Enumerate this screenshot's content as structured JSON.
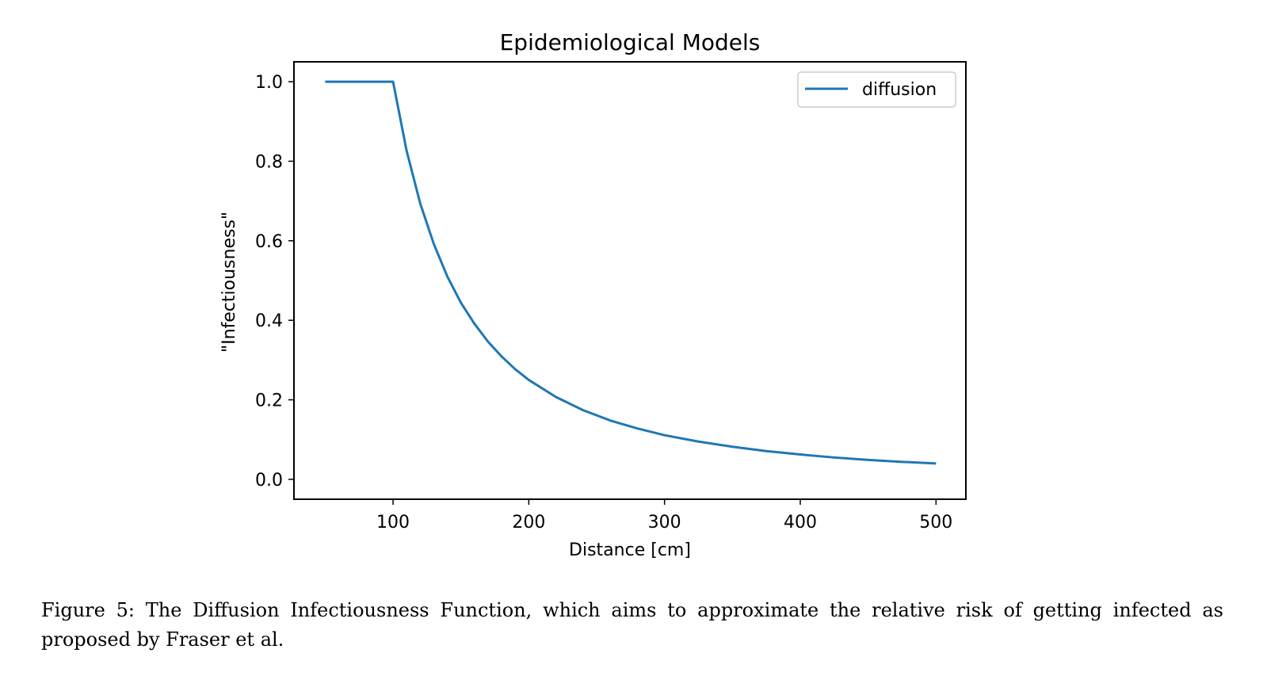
{
  "chart_data": {
    "type": "line",
    "title": "Epidemiological Models",
    "xlabel": "Distance [cm]",
    "ylabel": "\"Infectiousness\"",
    "xlim": [
      27,
      522
    ],
    "ylim": [
      -0.05,
      1.05
    ],
    "xticks": [
      100,
      200,
      300,
      400,
      500
    ],
    "yticks": [
      0.0,
      0.2,
      0.4,
      0.6,
      0.8,
      1.0
    ],
    "legend": "top-right",
    "grid": false,
    "series": [
      {
        "name": "diffusion",
        "color": "#1f77b4",
        "x": [
          50,
          75,
          100,
          110,
          120,
          130,
          140,
          150,
          160,
          170,
          180,
          190,
          200,
          220,
          240,
          260,
          280,
          300,
          325,
          350,
          375,
          400,
          425,
          450,
          475,
          500
        ],
        "y": [
          1.0,
          1.0,
          1.0,
          0.826,
          0.694,
          0.592,
          0.51,
          0.444,
          0.391,
          0.346,
          0.309,
          0.277,
          0.25,
          0.207,
          0.174,
          0.148,
          0.128,
          0.111,
          0.095,
          0.082,
          0.071,
          0.0625,
          0.055,
          0.049,
          0.044,
          0.04
        ]
      }
    ]
  },
  "caption": {
    "text": "Figure 5: The Diffusion Infectiousness Function, which aims to approximate the relative risk of getting infected as proposed by Fraser et al."
  }
}
